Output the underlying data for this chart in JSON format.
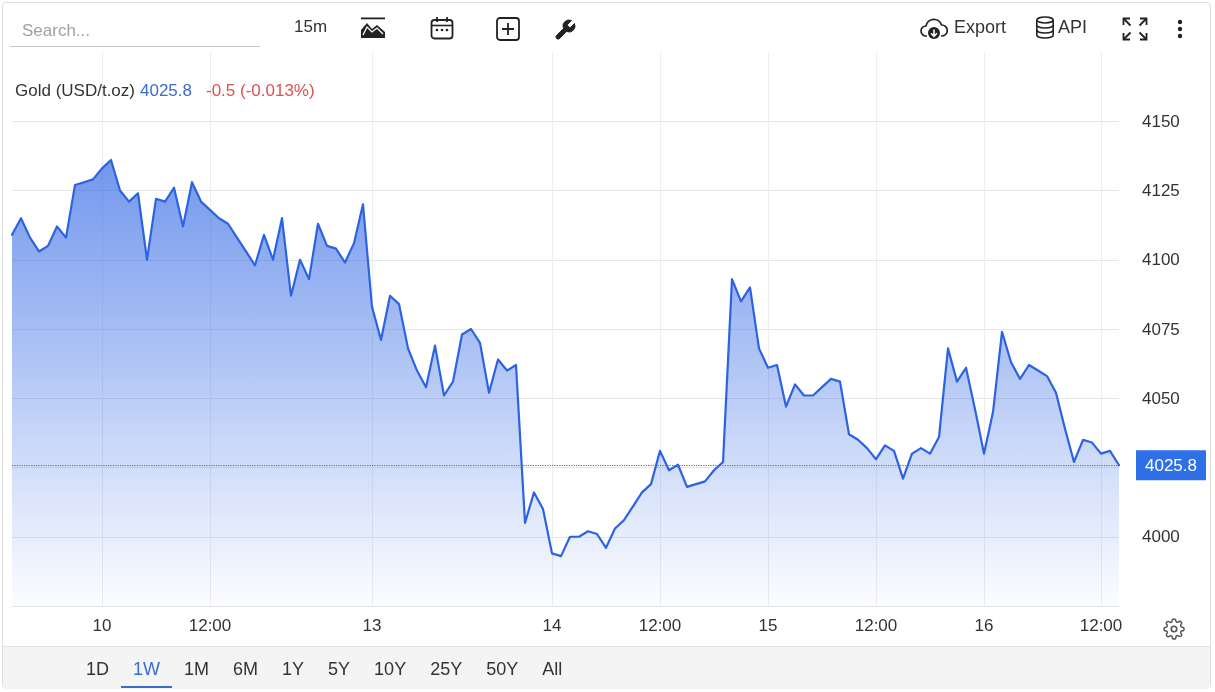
{
  "chart_data": {
    "type": "area",
    "title": "Gold (USD/t.oz)",
    "categories": [
      null,
      null,
      null,
      null,
      null,
      null,
      null,
      null,
      null,
      null,
      "10",
      null,
      null,
      null,
      null,
      null,
      null,
      null,
      null,
      null,
      null,
      null,
      "12:00",
      null,
      null,
      null,
      null,
      null,
      null,
      null,
      null,
      null,
      null,
      null,
      null,
      null,
      null,
      null,
      null,
      null,
      "13",
      null,
      null,
      null,
      null,
      null,
      null,
      null,
      null,
      null,
      null,
      null,
      null,
      null,
      null,
      null,
      null,
      null,
      null,
      null,
      "14",
      null,
      null,
      null,
      null,
      null,
      null,
      null,
      null,
      null,
      null,
      null,
      "12:00",
      null,
      null,
      null,
      null,
      null,
      null,
      null,
      null,
      null,
      null,
      null,
      "15",
      null,
      null,
      null,
      null,
      null,
      null,
      null,
      null,
      null,
      null,
      null,
      "12:00",
      null,
      null,
      null,
      null,
      null,
      null,
      null,
      null,
      null,
      null,
      null,
      "16",
      null,
      null,
      null,
      null,
      null,
      null,
      null,
      null,
      null,
      null,
      null,
      null,
      "12:00",
      null,
      null
    ],
    "values": [
      4109,
      4115,
      4108,
      4103,
      4105,
      4112,
      4108,
      4127,
      4128,
      4129,
      4133,
      4136,
      4125,
      4121,
      4124,
      4100,
      4122,
      4121,
      4126,
      4112,
      4128,
      4121,
      4118,
      4115,
      4113,
      4108,
      4103,
      4098,
      4109,
      4100,
      4115,
      4087,
      4100,
      4093,
      4113,
      4105,
      4104,
      4099,
      4106,
      4120,
      4083,
      4071,
      4087,
      4084,
      4068,
      4060,
      4054,
      4069,
      4051,
      4056,
      4073,
      4075,
      4070,
      4052,
      4064,
      4060,
      4062,
      4005,
      4016,
      4010,
      3994,
      3993,
      4000,
      4000,
      4002,
      4001,
      3996,
      4003,
      4006,
      4011,
      4016,
      4019,
      4031,
      4024,
      4026,
      4018,
      4019,
      4020,
      4024,
      4027,
      4093,
      4085,
      4090,
      4068,
      4061,
      4062,
      4047,
      4055,
      4051,
      4051,
      4054,
      4057,
      4056,
      4037,
      4035,
      4032,
      4028,
      4033,
      4031,
      4021,
      4030,
      4032,
      4030,
      4036,
      4068,
      4056,
      4061,
      4046,
      4030,
      4045,
      4074,
      4063,
      4057,
      4062,
      4060,
      4058,
      4052,
      4039,
      4027,
      4035,
      4034,
      4030,
      4031,
      4025.8
    ],
    "color": "#2c63e3",
    "ylim": [
      3975,
      4175
    ],
    "yticks": [
      4000,
      {
        "value": 4025,
        "label": null
      },
      4050,
      4075,
      4100,
      4125,
      4150
    ],
    "grid": true,
    "ref_lines": [
      {
        "axis": "y",
        "value": 4025.8,
        "label": "4025.8",
        "color": "#2f6fe8",
        "line_style": "dotted"
      }
    ],
    "annotations": [
      "4025.8",
      "-0.5 (-0.013%)",
      "Search...",
      "15m",
      "Export",
      "API",
      "1D",
      "1W",
      "1M",
      "6M",
      "1Y",
      "5Y",
      "10Y",
      "25Y",
      "50Y",
      "All"
    ]
  }
}
